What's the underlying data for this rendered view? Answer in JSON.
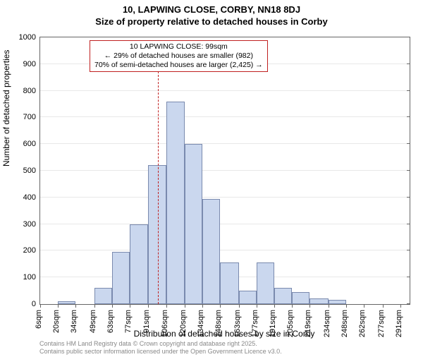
{
  "title_main": "10, LAPWING CLOSE, CORBY, NN18 8DJ",
  "title_sub": "Size of property relative to detached houses in Corby",
  "ylabel": "Number of detached properties",
  "xlabel": "Distribution of detached houses by size in Corby",
  "chart": {
    "type": "histogram",
    "ylim": [
      0,
      1000
    ],
    "ytick_step": 100,
    "background_color": "#ffffff",
    "grid_color": "#e8e8e8",
    "bar_fill": "#cad7ee",
    "bar_stroke": "#7a8aae",
    "x_categories": [
      "6sqm",
      "20sqm",
      "34sqm",
      "49sqm",
      "63sqm",
      "77sqm",
      "91sqm",
      "106sqm",
      "120sqm",
      "134sqm",
      "148sqm",
      "163sqm",
      "177sqm",
      "191sqm",
      "205sqm",
      "219sqm",
      "234sqm",
      "248sqm",
      "262sqm",
      "277sqm",
      "291sqm"
    ],
    "values": [
      0,
      10,
      0,
      60,
      195,
      300,
      520,
      760,
      600,
      395,
      155,
      50,
      155,
      60,
      45,
      20,
      15,
      0,
      0,
      0,
      0
    ],
    "x_start": 6,
    "x_end": 298,
    "vline_x": 99,
    "vline_color": "#c02020"
  },
  "info_box": {
    "line1": "10 LAPWING CLOSE: 99sqm",
    "line2": "← 29% of detached houses are smaller (982)",
    "line3": "70% of semi-detached houses are larger (2,425) →",
    "border_color": "#c02020"
  },
  "footer": {
    "line1": "Contains HM Land Registry data © Crown copyright and database right 2025.",
    "line2": "Contains public sector information licensed under the Open Government Licence v3.0."
  },
  "fonts": {
    "title_size": 13,
    "axis_label_size": 12,
    "tick_size": 11,
    "footer_size": 9
  }
}
